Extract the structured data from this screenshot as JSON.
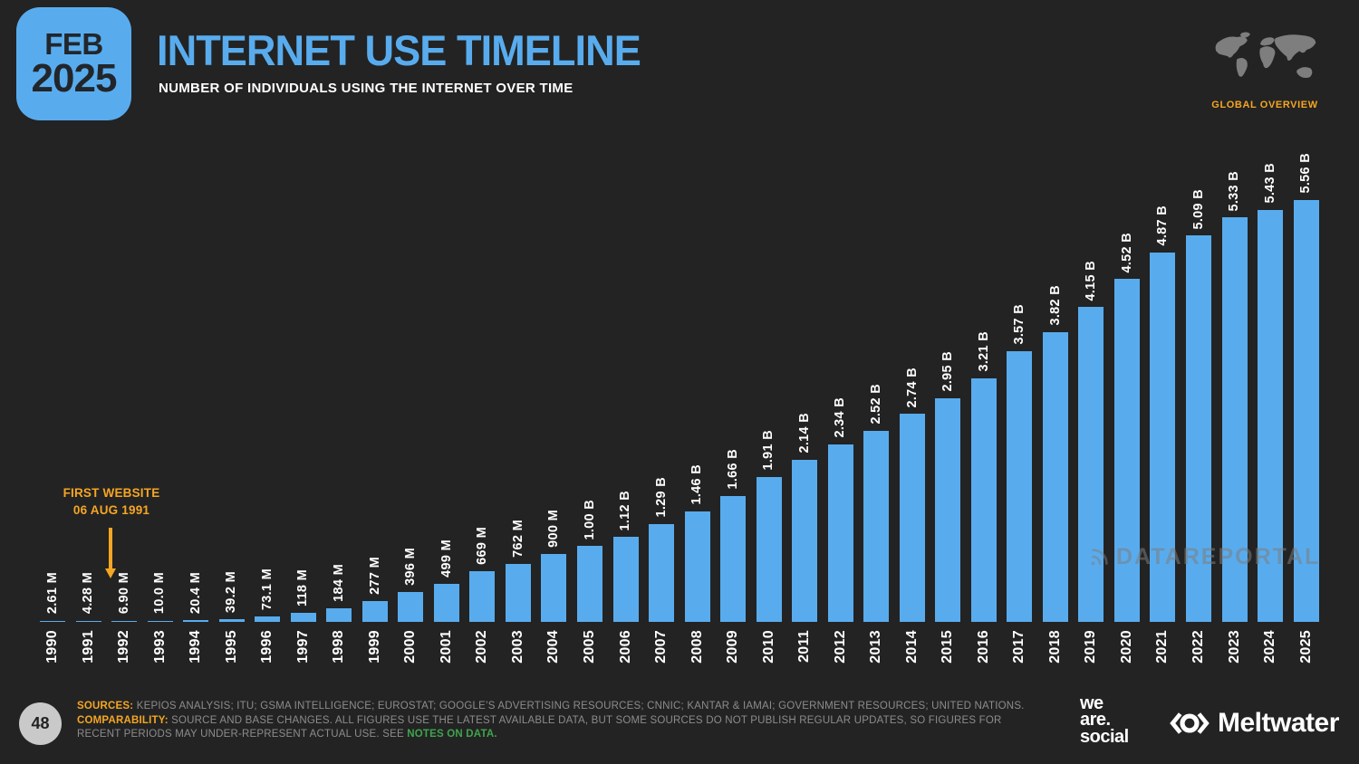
{
  "badge": {
    "month": "FEB",
    "year": "2025"
  },
  "header": {
    "title": "INTERNET USE TIMELINE",
    "subtitle": "NUMBER OF INDIVIDUALS USING THE INTERNET OVER TIME"
  },
  "overview": {
    "label": "GLOBAL OVERVIEW"
  },
  "annotation": {
    "line1": "FIRST WEBSITE",
    "line2": "06 AUG 1991"
  },
  "watermark": {
    "text": "DATAREPORTAL"
  },
  "chart_data": {
    "type": "bar",
    "title": "INTERNET USE TIMELINE",
    "xlabel": "",
    "ylabel": "Number of individuals using the internet",
    "ylim_millions": [
      0,
      5560
    ],
    "grid": false,
    "legend": "none",
    "bar_color": "#58ACEE",
    "categories": [
      "1990",
      "1991",
      "1992",
      "1993",
      "1994",
      "1995",
      "1996",
      "1997",
      "1998",
      "1999",
      "2000",
      "2001",
      "2002",
      "2003",
      "2004",
      "2005",
      "2006",
      "2007",
      "2008",
      "2009",
      "2010",
      "2011",
      "2012",
      "2013",
      "2014",
      "2015",
      "2016",
      "2017",
      "2018",
      "2019",
      "2020",
      "2021",
      "2022",
      "2023",
      "2024",
      "2025"
    ],
    "value_labels": [
      "2.61 M",
      "4.28 M",
      "6.90 M",
      "10.0 M",
      "20.4 M",
      "39.2 M",
      "73.1 M",
      "118 M",
      "184 M",
      "277 M",
      "396 M",
      "499 M",
      "669 M",
      "762 M",
      "900 M",
      "1.00 B",
      "1.12 B",
      "1.29 B",
      "1.46 B",
      "1.66 B",
      "1.91 B",
      "2.14 B",
      "2.34 B",
      "2.52 B",
      "2.74 B",
      "2.95 B",
      "3.21 B",
      "3.57 B",
      "3.82 B",
      "4.15 B",
      "4.52 B",
      "4.87 B",
      "5.09 B",
      "5.33 B",
      "5.43 B",
      "5.56 B"
    ],
    "values_millions": [
      2.61,
      4.28,
      6.9,
      10.0,
      20.4,
      39.2,
      73.1,
      118,
      184,
      277,
      396,
      499,
      669,
      762,
      900,
      1000,
      1120,
      1290,
      1460,
      1660,
      1910,
      2140,
      2340,
      2520,
      2740,
      2950,
      3210,
      3570,
      3820,
      4150,
      4520,
      4870,
      5090,
      5330,
      5430,
      5560
    ]
  },
  "footer": {
    "page_number": "48",
    "sources_label": "SOURCES:",
    "sources_text": " KEPIOS ANALYSIS; ITU; GSMA INTELLIGENCE; EUROSTAT; GOOGLE’S ADVERTISING RESOURCES; CNNIC; KANTAR & IAMAI; GOVERNMENT RESOURCES; UNITED NATIONS. ",
    "comparability_label": "COMPARABILITY:",
    "comparability_text": " SOURCE AND BASE CHANGES. ALL FIGURES USE THE LATEST AVAILABLE DATA, BUT SOME SOURCES DO NOT PUBLISH REGULAR UPDATES, SO FIGURES FOR RECENT PERIODS MAY UNDER-REPRESENT ACTUAL USE. SEE ",
    "notes_link": "NOTES ON DATA."
  },
  "brands": {
    "we_are_social": {
      "line1": "we",
      "line2": "are.",
      "line3": "social"
    },
    "meltwater": "Meltwater"
  },
  "colors": {
    "background": "#232323",
    "accent_blue": "#58ACEE",
    "accent_orange": "#F5A623",
    "accent_green": "#3FA44E",
    "footer_gray": "#8C8C8C"
  }
}
